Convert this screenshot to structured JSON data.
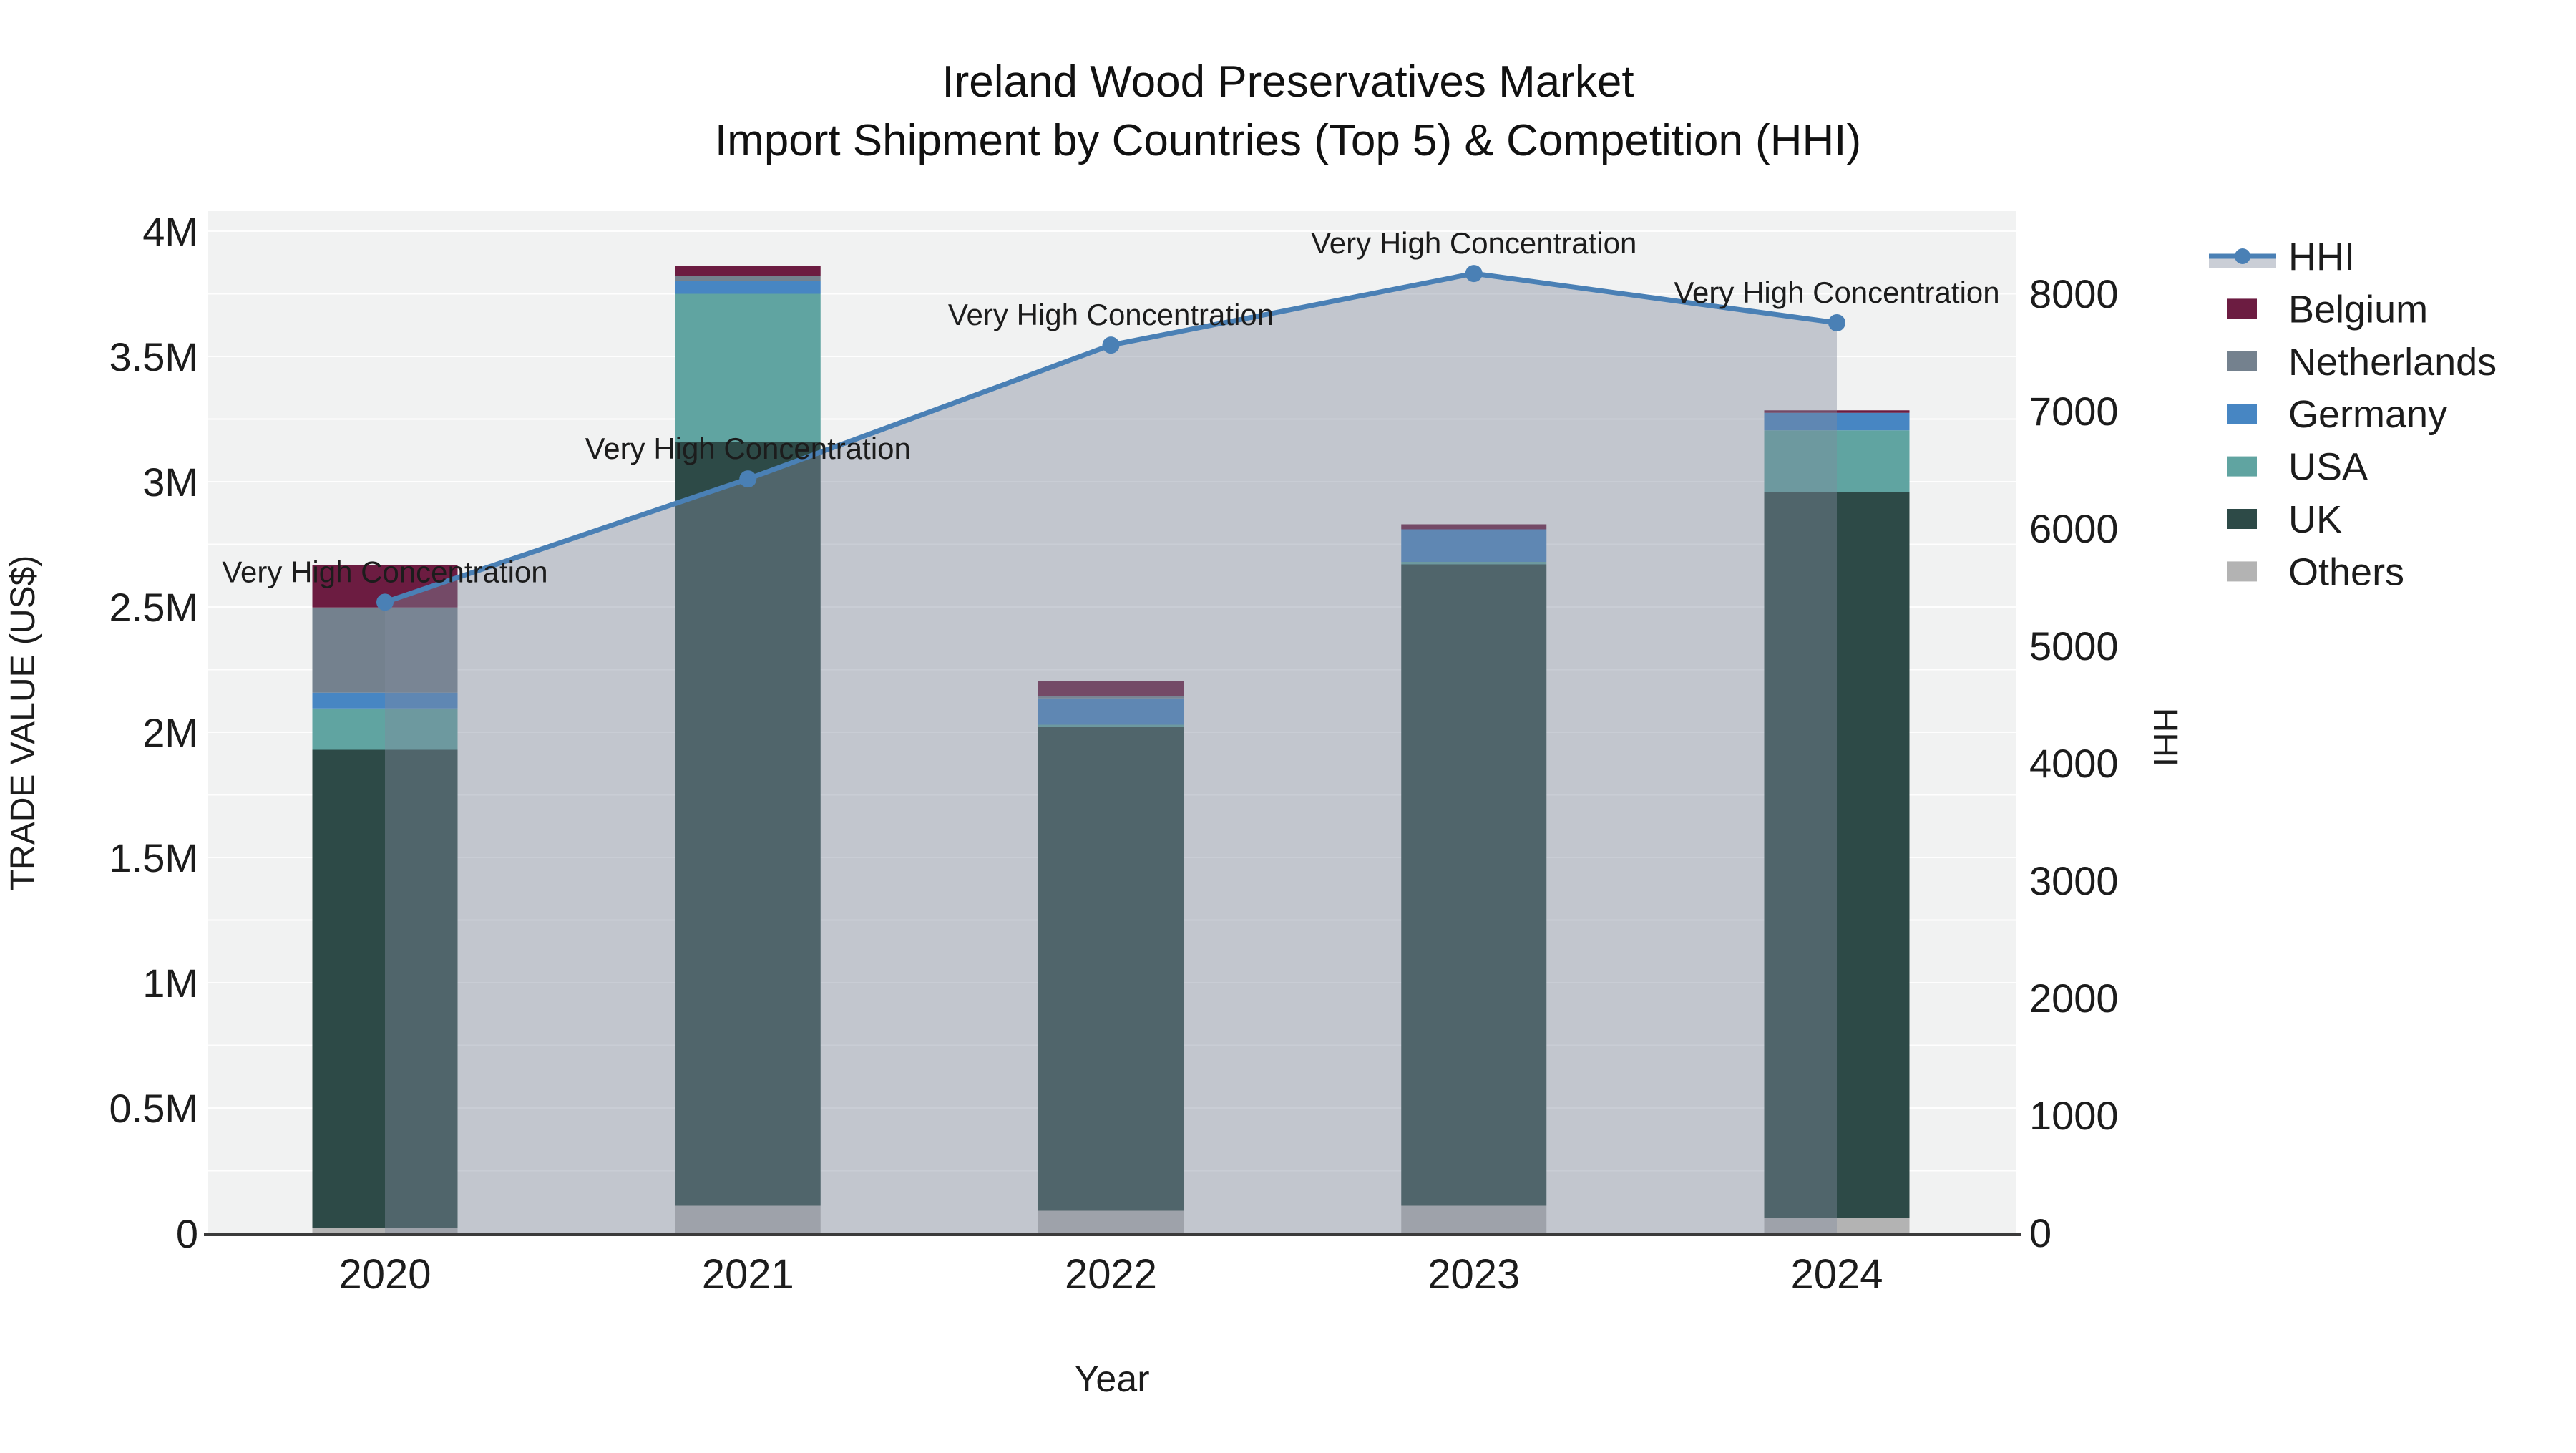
{
  "title": {
    "line1": "Ireland Wood Preservatives Market",
    "line2": "Import Shipment by Countries (Top 5) & Competition (HHI)"
  },
  "axes": {
    "x_title": "Year",
    "y_left_title": "TRADE VALUE (US$)",
    "y_right_title": "HHI",
    "y_left_ticks": [
      {
        "label": "0",
        "value": 0
      },
      {
        "label": "0.5M",
        "value": 500000
      },
      {
        "label": "1M",
        "value": 1000000
      },
      {
        "label": "1.5M",
        "value": 1500000
      },
      {
        "label": "2M",
        "value": 2000000
      },
      {
        "label": "2.5M",
        "value": 2500000
      },
      {
        "label": "3M",
        "value": 3000000
      },
      {
        "label": "3.5M",
        "value": 3500000
      },
      {
        "label": "4M",
        "value": 4000000
      }
    ],
    "y_right_ticks": [
      {
        "label": "0",
        "value": 0
      },
      {
        "label": "1000",
        "value": 1000
      },
      {
        "label": "2000",
        "value": 2000
      },
      {
        "label": "3000",
        "value": 3000
      },
      {
        "label": "4000",
        "value": 4000
      },
      {
        "label": "5000",
        "value": 5000
      },
      {
        "label": "6000",
        "value": 6000
      },
      {
        "label": "7000",
        "value": 7000
      },
      {
        "label": "8000",
        "value": 8000
      }
    ]
  },
  "legend": {
    "items": [
      {
        "label": "HHI",
        "color": "#4a80b5",
        "type": "line"
      },
      {
        "label": "Belgium",
        "color": "#6c1c41",
        "type": "box"
      },
      {
        "label": "Netherlands",
        "color": "#74818e",
        "type": "box"
      },
      {
        "label": "Germany",
        "color": "#4786c3",
        "type": "box"
      },
      {
        "label": "USA",
        "color": "#60a4a1",
        "type": "box"
      },
      {
        "label": "UK",
        "color": "#2d4a47",
        "type": "box"
      },
      {
        "label": "Others",
        "color": "#b3b3b3",
        "type": "box"
      }
    ]
  },
  "chart_data": {
    "type": "bar+line",
    "title": "Ireland Wood Preservatives Market — Import Shipment by Countries (Top 5) & Competition (HHI)",
    "xlabel": "Year",
    "ylabel": "TRADE VALUE (US$)",
    "ylabel_right": "HHI",
    "categories": [
      "2020",
      "2021",
      "2022",
      "2023",
      "2024"
    ],
    "bar_value_unit": "US$",
    "stacked": true,
    "grid": true,
    "legend_position": "right",
    "ylim_left": [
      0,
      4080000
    ],
    "ylim_right": [
      0,
      8700
    ],
    "series": [
      {
        "name": "Others",
        "color": "#b3b3b3",
        "values": [
          20000,
          110000,
          90000,
          110000,
          60000
        ]
      },
      {
        "name": "UK",
        "color": "#2d4a47",
        "values": [
          1910000,
          3050000,
          1930000,
          2560000,
          2900000
        ]
      },
      {
        "name": "USA",
        "color": "#60a4a1",
        "values": [
          165000,
          590000,
          10000,
          10000,
          245000
        ]
      },
      {
        "name": "Germany",
        "color": "#4786c3",
        "values": [
          63000,
          50000,
          105000,
          130000,
          70000
        ]
      },
      {
        "name": "Netherlands",
        "color": "#74818e",
        "values": [
          340000,
          20000,
          10000,
          0,
          0
        ]
      },
      {
        "name": "Belgium",
        "color": "#6c1c41",
        "values": [
          170000,
          40000,
          60000,
          20000,
          10000
        ]
      }
    ],
    "line_series": {
      "name": "HHI",
      "color": "#4a80b5",
      "area_fill": "rgba(128,139,158,0.42)",
      "values": [
        5370,
        6420,
        7560,
        8170,
        7750
      ]
    },
    "annotations": [
      {
        "x": "2020",
        "text": "Very High Concentration"
      },
      {
        "x": "2021",
        "text": "Very High Concentration"
      },
      {
        "x": "2022",
        "text": "Very High Concentration"
      },
      {
        "x": "2023",
        "text": "Very High Concentration"
      },
      {
        "x": "2024",
        "text": "Very High Concentration"
      }
    ]
  }
}
